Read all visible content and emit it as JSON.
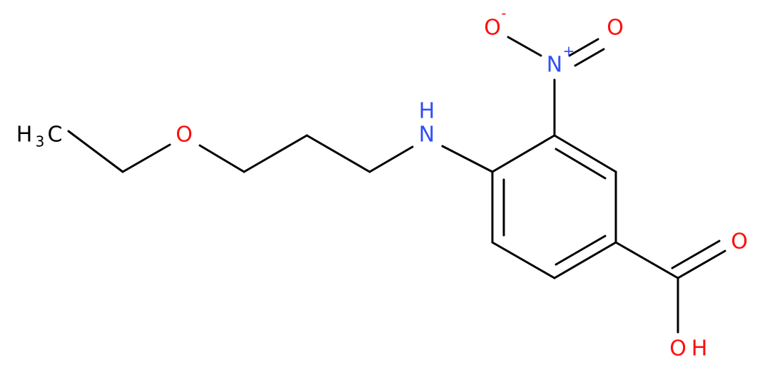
{
  "molecule": {
    "atoms": [
      {
        "element": "H",
        "subscript": "3",
        "tail": "C"
      },
      {
        "element": "O"
      },
      {
        "element": "N",
        "hydrogen": "H"
      },
      {
        "element": "N",
        "charge": "+"
      },
      {
        "element": "O",
        "charge": "-"
      },
      {
        "element": "O"
      },
      {
        "element": "O"
      },
      {
        "element": "O",
        "hydrogen": "H"
      }
    ]
  }
}
